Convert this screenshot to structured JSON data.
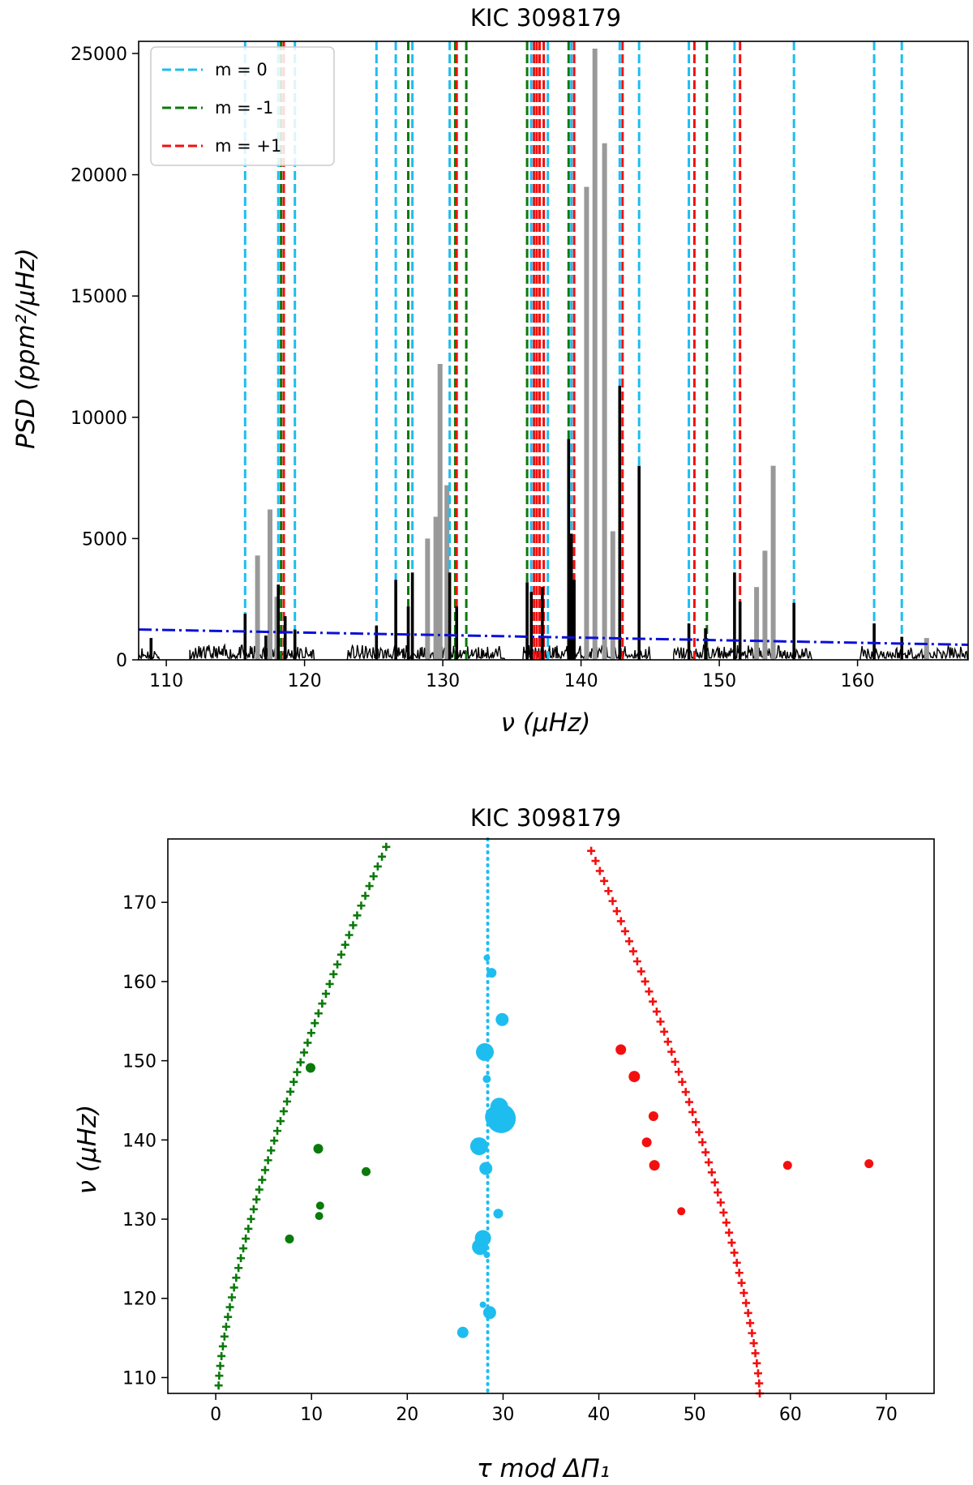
{
  "chart_data": [
    {
      "type": "line",
      "title": "KIC 3098179",
      "xlabel": "ν (μHz)",
      "ylabel": "PSD (ppm²/μHz)",
      "xlim": [
        108,
        168
      ],
      "ylim": [
        0,
        25500
      ],
      "xticks": [
        110,
        120,
        130,
        140,
        150,
        160
      ],
      "yticks": [
        0,
        5000,
        10000,
        15000,
        20000,
        25000
      ],
      "legend": {
        "position": "top-left",
        "entries": [
          {
            "label": "m = 0",
            "color": "#1ebdf0"
          },
          {
            "label": "m = -1",
            "color": "#0a7a0a"
          },
          {
            "label": "m = +1",
            "color": "#f40f0f"
          }
        ]
      },
      "background_fit": {
        "style": "dash-dot",
        "color": "#0b10d8",
        "x": [
          108,
          168
        ],
        "y": [
          1250,
          620
        ]
      },
      "vlines": {
        "m0": [
          115.7,
          118.1,
          119.3,
          125.2,
          126.6,
          127.8,
          130.5,
          136.4,
          137.6,
          139.3,
          142.8,
          144.2,
          147.8,
          151.1,
          155.4,
          161.2,
          163.2
        ],
        "m_minus1": [
          118.3,
          127.5,
          130.9,
          131.7,
          136.1,
          139.1,
          149.1
        ],
        "m_plus1": [
          118.5,
          131.0,
          136.6,
          136.8,
          137.0,
          137.3,
          139.5,
          143.0,
          148.2,
          151.5
        ]
      },
      "spectrum": {
        "nonradial_peaks_black": [
          [
            108.9,
            900
          ],
          [
            115.7,
            1900
          ],
          [
            117.2,
            1000
          ],
          [
            118.1,
            3100
          ],
          [
            118.6,
            1800
          ],
          [
            119.3,
            1250
          ],
          [
            125.2,
            1400
          ],
          [
            126.6,
            3300
          ],
          [
            127.5,
            2200
          ],
          [
            127.8,
            3600
          ],
          [
            130.5,
            3600
          ],
          [
            131.0,
            2200
          ],
          [
            136.1,
            3200
          ],
          [
            136.4,
            2800
          ],
          [
            137.2,
            3000
          ],
          [
            139.1,
            9100
          ],
          [
            139.3,
            5200
          ],
          [
            139.5,
            3300
          ],
          [
            142.8,
            11300
          ],
          [
            144.2,
            8000
          ],
          [
            147.8,
            1500
          ],
          [
            149.0,
            1300
          ],
          [
            151.1,
            3600
          ],
          [
            151.5,
            2400
          ],
          [
            155.4,
            2350
          ],
          [
            161.2,
            1500
          ],
          [
            163.2,
            950
          ]
        ],
        "radial_modes_gray": [
          [
            116.6,
            4300
          ],
          [
            117.5,
            6200
          ],
          [
            118.0,
            2600
          ],
          [
            128.9,
            5000
          ],
          [
            129.5,
            5900
          ],
          [
            129.8,
            12200
          ],
          [
            130.3,
            7200
          ],
          [
            140.4,
            19500
          ],
          [
            141.0,
            25200
          ],
          [
            141.7,
            21300
          ],
          [
            142.3,
            5300
          ],
          [
            152.7,
            3000
          ],
          [
            153.3,
            4500
          ],
          [
            153.9,
            8000
          ],
          [
            165.0,
            900
          ]
        ],
        "noise_segments": [
          [
            108,
            109.5
          ],
          [
            111.7,
            120.7
          ],
          [
            123.1,
            134.5
          ],
          [
            135.8,
            145.0
          ],
          [
            146.7,
            156.7
          ],
          [
            160.2,
            168
          ]
        ]
      }
    },
    {
      "type": "scatter",
      "title": "KIC 3098179",
      "xlabel": "τ mod ΔΠ₁",
      "ylabel": "ν (μHz)",
      "xlim": [
        -5,
        75
      ],
      "ylim": [
        108,
        178
      ],
      "xticks": [
        0,
        10,
        20,
        30,
        40,
        50,
        60,
        70
      ],
      "yticks": [
        110,
        120,
        130,
        140,
        150,
        160,
        170
      ],
      "model_m0_line": {
        "x": 28.4,
        "style": "dotted",
        "color": "#1ebdf0"
      },
      "model_m_minus1": {
        "x_start": 0.3,
        "x_end": 17.8,
        "nu_start": 109,
        "nu_end": 177,
        "count": 56,
        "curvature": 1.4,
        "color": "#0a7a0a"
      },
      "model_m_plus1": {
        "x_start": 56.8,
        "x_end": 39.2,
        "nu_start": 108,
        "nu_end": 176.5,
        "count": 55,
        "curvature": 1.4,
        "color": "#f40f0f"
      },
      "observed_m0": [
        [
          25.8,
          115.7,
          7
        ],
        [
          28.6,
          118.2,
          8
        ],
        [
          27.9,
          119.2,
          4
        ],
        [
          28.3,
          125.5,
          4
        ],
        [
          27.6,
          126.5,
          10
        ],
        [
          27.9,
          127.6,
          10
        ],
        [
          29.5,
          130.7,
          6
        ],
        [
          28.2,
          136.4,
          8
        ],
        [
          27.5,
          139.2,
          11
        ],
        [
          29.3,
          142.9,
          14
        ],
        [
          29.6,
          144.2,
          11
        ],
        [
          29.8,
          142.7,
          18
        ],
        [
          28.3,
          147.7,
          5
        ],
        [
          28.1,
          151.1,
          11
        ],
        [
          29.9,
          155.2,
          8
        ],
        [
          28.8,
          161.1,
          6
        ],
        [
          28.3,
          163.0,
          4
        ]
      ],
      "observed_m_minus1": [
        [
          9.9,
          149.1,
          6
        ],
        [
          10.7,
          138.9,
          6
        ],
        [
          10.9,
          131.7,
          5
        ],
        [
          10.8,
          130.4,
          5
        ],
        [
          15.7,
          136.0,
          5.5
        ],
        [
          7.7,
          127.5,
          5.5
        ]
      ],
      "observed_m_plus1": [
        [
          42.3,
          151.4,
          6.5
        ],
        [
          43.7,
          148.0,
          7
        ],
        [
          45.7,
          143.0,
          6
        ],
        [
          45.0,
          139.7,
          6
        ],
        [
          45.8,
          136.8,
          6.5
        ],
        [
          48.6,
          131.0,
          5
        ],
        [
          59.7,
          136.8,
          5.5
        ],
        [
          68.2,
          137.0,
          5.5
        ]
      ]
    }
  ]
}
